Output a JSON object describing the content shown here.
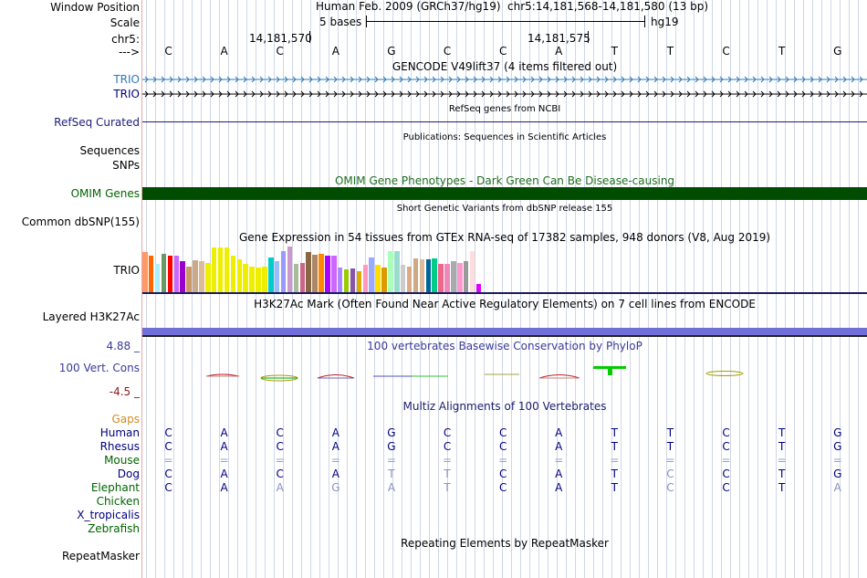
{
  "header": {
    "window_position_label": "Window Position",
    "scale_label": "Scale",
    "chrom_label": "chr5:",
    "arrow_label": "--->",
    "assembly": "Human Feb. 2009 (GRCh37/hg19)",
    "position": "chr5:14,181,568-14,181,580 (13 bp)",
    "scale_text": "5 bases",
    "db": "hg19",
    "coord1": "14,181,570",
    "coord2": "14,181,575"
  },
  "bases": [
    "C",
    "A",
    "C",
    "A",
    "G",
    "C",
    "C",
    "A",
    "T",
    "T",
    "C",
    "T",
    "G"
  ],
  "tracks": {
    "gencode_title": "GENCODE V49lift37 (4 items filtered out)",
    "gene1": "TRIO",
    "gene2": "TRIO",
    "refseq_label": "RefSeq Curated",
    "refseq_title": "RefSeq genes from NCBI",
    "pubs_title": "Publications: Sequences in Scientific Articles",
    "sequences_label": "Sequences",
    "snps_label": "SNPs",
    "omim_title": "OMIM Gene Phenotypes - Dark Green Can Be Disease-causing",
    "omim_label": "OMIM Genes",
    "dbsnp_title": "Short Genetic Variants from dbSNP release 155",
    "dbsnp_label": "Common dbSNP(155)",
    "gtex_title": "Gene Expression in 54 tissues from GTEx RNA-seq of 17382 samples, 948 donors (V8, Aug 2019)",
    "gtex_label": "TRIO",
    "h3k27_title": "H3K27Ac Mark (Often Found Near Active Regulatory Elements) on 7 cell lines from ENCODE",
    "h3k27_label": "Layered H3K27Ac",
    "cons_title": "100 vertebrates Basewise Conservation by PhyloP",
    "cons_max": "4.88 _",
    "cons_label": "100 Vert. Cons",
    "cons_min": "-4.5 _",
    "multiz_title": "Multiz Alignments of 100 Vertebrates",
    "gaps_label": "Gaps",
    "rmsk_title": "Repeating Elements by RepeatMasker",
    "rmsk_label": "RepeatMasker"
  },
  "species": [
    {
      "name": "Human",
      "color": "#000080",
      "bases": [
        "C",
        "A",
        "C",
        "A",
        "G",
        "C",
        "C",
        "A",
        "T",
        "T",
        "C",
        "T",
        "G"
      ]
    },
    {
      "name": "Rhesus",
      "color": "#000080",
      "bases": [
        "C",
        "A",
        "C",
        "A",
        "G",
        "C",
        "C",
        "A",
        "T",
        "T",
        "C",
        "T",
        "G"
      ]
    },
    {
      "name": "Mouse",
      "color": "#006400",
      "bases": [
        "=",
        "=",
        "=",
        "=",
        "=",
        "=",
        "=",
        "=",
        "=",
        "=",
        "=",
        "=",
        "="
      ]
    },
    {
      "name": "Dog",
      "color": "#000080",
      "bases": [
        "C",
        "A",
        "C",
        "A",
        "T",
        "T",
        "C",
        "A",
        "T",
        "C",
        "C",
        "T",
        "G"
      ]
    },
    {
      "name": "Elephant",
      "color": "#006400",
      "bases": [
        "C",
        "A",
        "A",
        "G",
        "A",
        "T",
        "C",
        "A",
        "T",
        "C",
        "C",
        "T",
        "A"
      ]
    },
    {
      "name": "Chicken",
      "color": "#006400",
      "bases": []
    },
    {
      "name": "X_tropicalis",
      "color": "#000080",
      "bases": []
    },
    {
      "name": "Zebrafish",
      "color": "#006400",
      "bases": []
    }
  ],
  "gtex_values": [
    44,
    40,
    31,
    42,
    40,
    40,
    34,
    28,
    35,
    34,
    32,
    49,
    49,
    49,
    40,
    36,
    31,
    28,
    27,
    28,
    38,
    34,
    45,
    50,
    31,
    32,
    44,
    41,
    42,
    40,
    40,
    27,
    25,
    26,
    23,
    30,
    38,
    30,
    27,
    45,
    45,
    30,
    28,
    37,
    36,
    36,
    37,
    31,
    31,
    34,
    32,
    34,
    45,
    9
  ],
  "gtex_colors": [
    "#ff9966",
    "#ff6600",
    "#aaeeff",
    "#669966",
    "#ff0000",
    "#cc66ff",
    "#9900cc",
    "#cc9966",
    "#ccaa88",
    "#ddbb99",
    "#eeee00",
    "#eeee00",
    "#eeee00",
    "#eeee00",
    "#eeee00",
    "#eeee00",
    "#eeee00",
    "#eeee00",
    "#eeee00",
    "#eeee00",
    "#00cccc",
    "#99bbff",
    "#9999ff",
    "#cc99cc",
    "#aabb99",
    "#cc6688",
    "#886644",
    "#aa8866",
    "#ff8800",
    "#aa00ff",
    "#cc66ff",
    "#aa88ff",
    "#99cc00",
    "#8855aa",
    "#ddaa00",
    "#ff99bb",
    "#99aaff",
    "#ffdd00",
    "#dd9900",
    "#aaffbb",
    "#99ddcc",
    "#cccccc",
    "#ddaa88",
    "#ccaa88",
    "#ddbb99",
    "#006699",
    "#00cc88",
    "#ee6688",
    "#ee88bb",
    "#aaaaaa",
    "#ff99cc",
    "#999999",
    "#ffdddd",
    "#dd00ff"
  ],
  "colors": {
    "label_blue": "#0c4ca0",
    "navy": "#000080",
    "omim_green": "#004c00",
    "gaps_orange": "#d08c20",
    "cons_blue": "#3a3a9a",
    "cons_red": "#8c1616"
  }
}
